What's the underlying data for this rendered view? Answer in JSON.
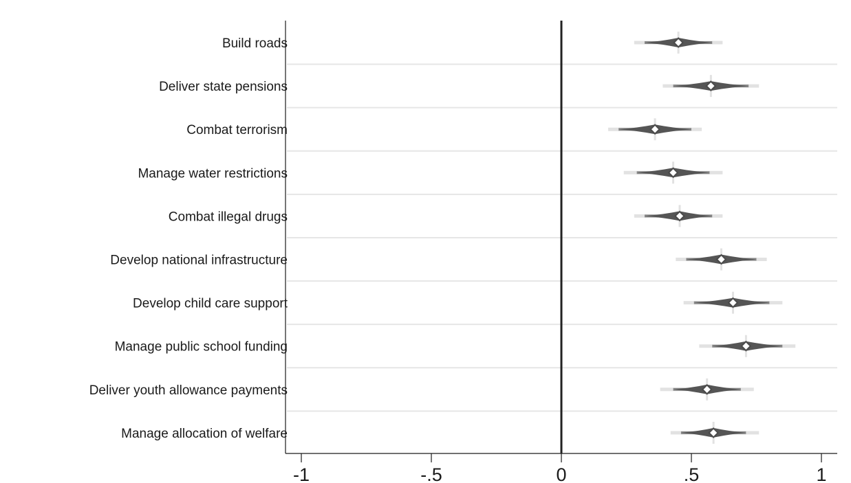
{
  "chart_data": {
    "type": "scatter",
    "title": "",
    "xlabel": "",
    "ylabel": "",
    "xlim": [
      -1.05,
      1.05
    ],
    "x_ticks": [
      -1,
      -0.5,
      0,
      0.5,
      1
    ],
    "x_tick_labels": [
      "-1",
      "-.5",
      "0",
      ".5",
      "1"
    ],
    "reference_line_x": 0,
    "grid": "horizontal separators between categories",
    "colors": {
      "ci_wide": "#e2e2e2",
      "ci_mid": "#8a8a8a",
      "ci_narrow": "#555555",
      "marker_fill": "#ffffff",
      "marker_stroke": "#4a4a4a",
      "zero_line": "#222222",
      "grid": "#e6e6e6"
    },
    "categories": [
      "Build roads",
      "Deliver state pensions",
      "Combat terrorism",
      "Manage water restrictions",
      "Combat illegal drugs",
      "Develop national infrastructure",
      "Develop child care support",
      "Manage public school funding",
      "Deliver youth allowance payments",
      "Manage allocation of welfare"
    ],
    "estimates": [
      {
        "label": "Build roads",
        "point": 0.45,
        "ci_inner": [
          0.32,
          0.58
        ],
        "ci_outer": [
          0.28,
          0.62
        ]
      },
      {
        "label": "Deliver state pensions",
        "point": 0.575,
        "ci_inner": [
          0.43,
          0.72
        ],
        "ci_outer": [
          0.39,
          0.76
        ]
      },
      {
        "label": "Combat terrorism",
        "point": 0.36,
        "ci_inner": [
          0.22,
          0.5
        ],
        "ci_outer": [
          0.18,
          0.54
        ]
      },
      {
        "label": "Manage water restrictions",
        "point": 0.43,
        "ci_inner": [
          0.29,
          0.57
        ],
        "ci_outer": [
          0.24,
          0.62
        ]
      },
      {
        "label": "Combat illegal drugs",
        "point": 0.455,
        "ci_inner": [
          0.32,
          0.58
        ],
        "ci_outer": [
          0.28,
          0.62
        ]
      },
      {
        "label": "Develop national infrastructure",
        "point": 0.615,
        "ci_inner": [
          0.48,
          0.75
        ],
        "ci_outer": [
          0.44,
          0.79
        ]
      },
      {
        "label": "Develop child care support",
        "point": 0.66,
        "ci_inner": [
          0.51,
          0.8
        ],
        "ci_outer": [
          0.47,
          0.85
        ]
      },
      {
        "label": "Manage public school funding",
        "point": 0.71,
        "ci_inner": [
          0.58,
          0.85
        ],
        "ci_outer": [
          0.53,
          0.9
        ]
      },
      {
        "label": "Deliver youth allowance payments",
        "point": 0.56,
        "ci_inner": [
          0.43,
          0.69
        ],
        "ci_outer": [
          0.38,
          0.74
        ]
      },
      {
        "label": "Manage allocation of welfare",
        "point": 0.585,
        "ci_inner": [
          0.46,
          0.71
        ],
        "ci_outer": [
          0.42,
          0.76
        ]
      }
    ]
  }
}
